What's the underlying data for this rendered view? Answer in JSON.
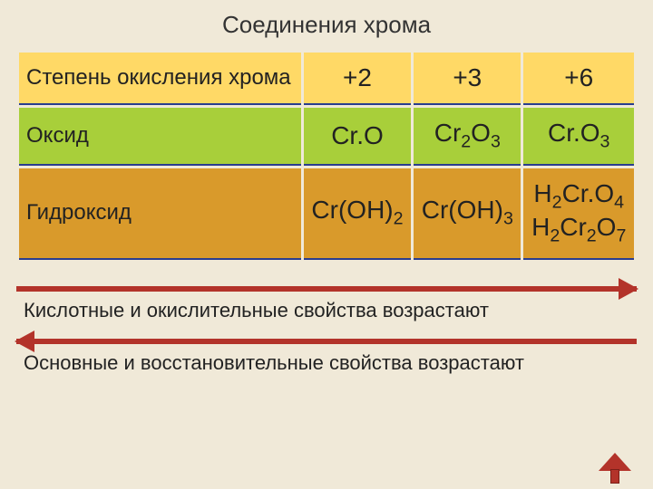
{
  "title": "Соединения хрома",
  "colors": {
    "background": "#f0e9d8",
    "row1": "#ffd966",
    "row2": "#a8cf3a",
    "row3": "#d99a2b",
    "rule": "#2a3d8f",
    "arrow": "#b3332a"
  },
  "table": {
    "rows": [
      {
        "header": "Степень окисления хрома",
        "class": "yellow",
        "cells": [
          "+2",
          "+3",
          "+6"
        ]
      },
      {
        "header": "Оксид",
        "class": "green",
        "cells_html": [
          "Cr.O",
          "Cr<sub>2</sub>O<sub>3</sub>",
          "Cr.O<sub>3</sub>"
        ]
      },
      {
        "header": "Гидроксид",
        "class": "orange",
        "cells_html": [
          "Cr(OH)<sub>2</sub>",
          "Cr(OH)<sub>3</sub>",
          "H<sub>2</sub>Cr.O<sub>4</sub><br>H<sub>2</sub>Cr<sub>2</sub>O<sub>7</sub>"
        ]
      }
    ]
  },
  "arrows": {
    "right_caption": "Кислотные и окислительные свойства возрастают",
    "left_caption": "Основные  и восстановительные свойства возрастают"
  },
  "typography": {
    "title_fontsize": 26,
    "cell_fontsize": 28,
    "caption_fontsize": 22
  }
}
